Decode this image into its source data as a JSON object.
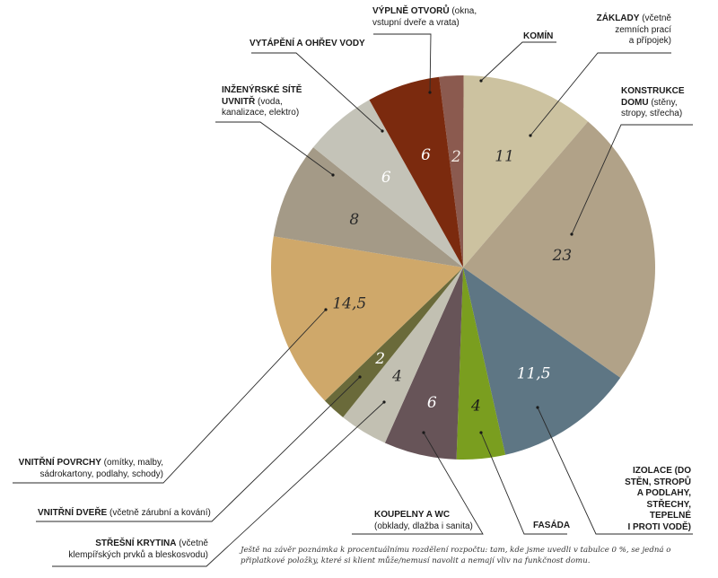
{
  "chart_data": {
    "type": "pie",
    "title": "",
    "unit": "%",
    "start_angle_deg": -7.2,
    "direction": "clockwise",
    "slices": [
      {
        "id": "komin",
        "value": 2,
        "value_label": "2",
        "color": "#8b5a4f",
        "value_color": "#f2e8e2",
        "label_bold": "KOMÍN",
        "label_rest": ""
      },
      {
        "id": "zaklady",
        "value": 11,
        "value_label": "11",
        "color": "#ccc2a0",
        "value_color": "#2a2a2a",
        "label_bold": "ZÁKLADY",
        "label_rest": " (včetně\nzemních prací\na přípojek)"
      },
      {
        "id": "konstrukce",
        "value": 23,
        "value_label": "23",
        "color": "#b1a288",
        "value_color": "#2a2a2a",
        "label_bold": "KONSTRUKCE\nDOMU",
        "label_rest": " (stěny,\nstropy, střecha)"
      },
      {
        "id": "izolace",
        "value": 11.5,
        "value_label": "11,5",
        "color": "#5e7684",
        "value_color": "#ffffff",
        "label_bold": "IZOLACE (DO\nSTĚN, STROPŮ\nA PODLAHY,\nSTŘECHY,\nTEPELNÉ\nI PROTI VODĚ)",
        "label_rest": ""
      },
      {
        "id": "fasada",
        "value": 4,
        "value_label": "4",
        "color": "#7a9e1f",
        "value_color": "#1a1a1a",
        "label_bold": "FASÁDA",
        "label_rest": ""
      },
      {
        "id": "koupelny",
        "value": 6,
        "value_label": "6",
        "color": "#675458",
        "value_color": "#ffffff",
        "label_bold": "KOUPELNY A WC",
        "label_rest": "\n(obklady, dlažba i sanita)"
      },
      {
        "id": "stresni-krytina",
        "value": 4,
        "value_label": "4",
        "color": "#c2c0b2",
        "value_color": "#2a2a2a",
        "label_bold": "STŘEŠNÍ KRYTINA",
        "label_rest": " (včetně\nklempířských prvků a bleskosvodu)"
      },
      {
        "id": "vnitrni-dvere",
        "value": 2,
        "value_label": "2",
        "color": "#6a6a3a",
        "value_color": "#ffffff",
        "label_bold": "VNITŘNÍ DVEŘE",
        "label_rest": " (včetně zárubní a kování)"
      },
      {
        "id": "vnitrni-povrchy",
        "value": 14.5,
        "value_label": "14,5",
        "color": "#cfa86a",
        "value_color": "#2a2a2a",
        "label_bold": "VNITŘNÍ POVRCHY",
        "label_rest": " (omítky, malby,\nsádrokartony, podlahy, schody)"
      },
      {
        "id": "inzenyrske-site",
        "value": 8,
        "value_label": "8",
        "color": "#a49a87",
        "value_color": "#2a2a2a",
        "label_bold": "INŽENÝRSKÉ SÍTĚ\nUVNITŘ",
        "label_rest": " (voda,\nkanalizace, elektro)"
      },
      {
        "id": "vytapeni",
        "value": 6,
        "value_label": "6",
        "color": "#c4c3b8",
        "value_color": "#ffffff",
        "label_bold": "VYTÁPĚNÍ A OHŘEV VODY",
        "label_rest": ""
      },
      {
        "id": "vyplne-otvoru",
        "value": 6,
        "value_label": "6",
        "color": "#7b2a0e",
        "value_color": "#ffffff",
        "label_bold": "VÝPLNĚ OTVORŮ",
        "label_rest": " (okna,\nvstupní dveře a vrata)"
      }
    ],
    "footnote": "Ještě na závěr poznámka k procentuálnímu rozdělení rozpočtu: tam, kde jsme uvedli v tabulce 0 %, se jedná o připlatkové položky, které si klient může/nemusí navolit a nemají vliv na funkčnost domu."
  }
}
